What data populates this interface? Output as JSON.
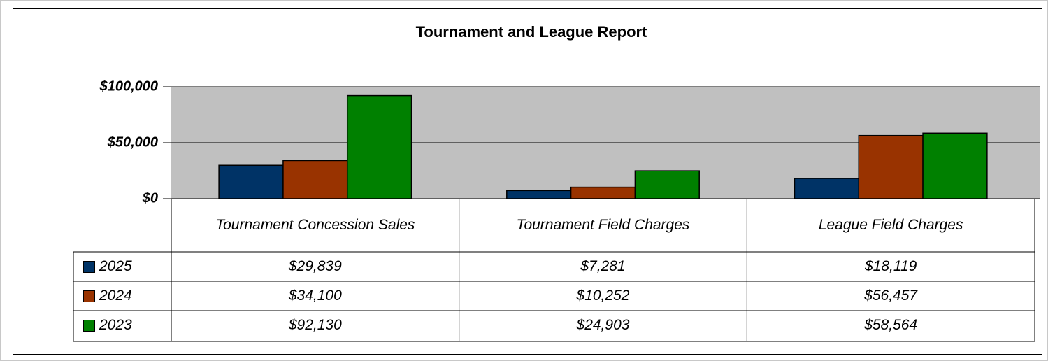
{
  "chart_data": {
    "type": "bar",
    "title": "Tournament and League Report",
    "categories": [
      "Tournament Concession Sales",
      "Tournament Field Charges",
      "League Field Charges"
    ],
    "series": [
      {
        "name": "2025",
        "color": "#003366",
        "values": [
          29839,
          7281,
          18119
        ],
        "value_labels": [
          "$29,839",
          "$7,281",
          "$18,119"
        ]
      },
      {
        "name": "2024",
        "color": "#993300",
        "values": [
          34100,
          10252,
          56457
        ],
        "value_labels": [
          "$34,100",
          "$10,252",
          "$56,457"
        ]
      },
      {
        "name": "2023",
        "color": "#008000",
        "values": [
          92130,
          24903,
          58564
        ],
        "value_labels": [
          "$92,130",
          "$24,903",
          "$58,564"
        ]
      }
    ],
    "ylim": [
      0,
      100000
    ],
    "yticks": [
      {
        "value": 0,
        "label": "$0"
      },
      {
        "value": 50000,
        "label": "$50,000"
      },
      {
        "value": 100000,
        "label": "$100,000"
      }
    ],
    "grid": true,
    "plot_background": "#c0c0c0"
  }
}
